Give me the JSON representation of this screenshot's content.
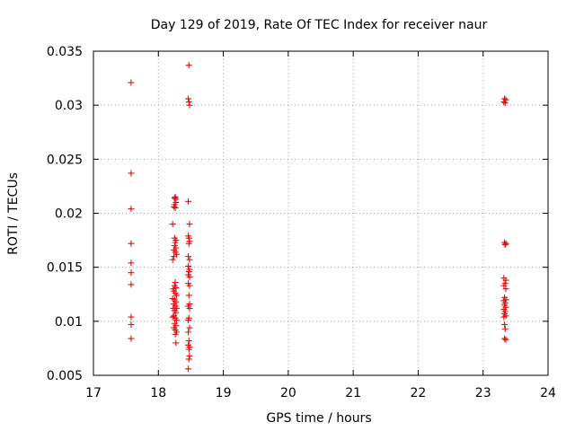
{
  "chart_data": {
    "type": "scatter",
    "title": "Day 129 of 2019, Rate Of TEC Index for receiver naur",
    "xlabel": "GPS time / hours",
    "ylabel": "ROTI / TECUs",
    "xlim": [
      17,
      24
    ],
    "ylim": [
      0.005,
      0.035
    ],
    "xticks": [
      17,
      18,
      19,
      20,
      21,
      22,
      23,
      24
    ],
    "yticks": [
      0.005,
      0.01,
      0.015,
      0.02,
      0.025,
      0.03,
      0.035
    ],
    "xtick_labels": [
      "17",
      "18",
      "19",
      "20",
      "21",
      "22",
      "23",
      "24"
    ],
    "ytick_labels": [
      "0.005",
      "0.01",
      "0.015",
      "0.02",
      "0.025",
      "0.03",
      "0.035"
    ],
    "grid": true,
    "marker": "+",
    "color": "#e01010",
    "series": [
      {
        "name": "ROTI",
        "points": [
          [
            17.58,
            0.0321
          ],
          [
            17.58,
            0.0237
          ],
          [
            17.58,
            0.0204
          ],
          [
            17.58,
            0.0172
          ],
          [
            17.58,
            0.0154
          ],
          [
            17.58,
            0.0145
          ],
          [
            17.58,
            0.0134
          ],
          [
            17.58,
            0.0104
          ],
          [
            17.58,
            0.0097
          ],
          [
            17.58,
            0.0084
          ],
          [
            18.22,
            0.019
          ],
          [
            18.22,
            0.0157
          ],
          [
            18.23,
            0.013
          ],
          [
            18.22,
            0.0121
          ],
          [
            18.23,
            0.0112
          ],
          [
            18.22,
            0.0104
          ],
          [
            18.25,
            0.0214
          ],
          [
            18.26,
            0.0215
          ],
          [
            18.27,
            0.0213
          ],
          [
            18.25,
            0.0208
          ],
          [
            18.24,
            0.0206
          ],
          [
            18.26,
            0.0205
          ],
          [
            18.27,
            0.021
          ],
          [
            18.25,
            0.0177
          ],
          [
            18.27,
            0.0175
          ],
          [
            18.26,
            0.0173
          ],
          [
            18.25,
            0.017
          ],
          [
            18.27,
            0.0168
          ],
          [
            18.24,
            0.0166
          ],
          [
            18.26,
            0.0164
          ],
          [
            18.28,
            0.0162
          ],
          [
            18.24,
            0.016
          ],
          [
            18.26,
            0.0136
          ],
          [
            18.25,
            0.0133
          ],
          [
            18.27,
            0.0131
          ],
          [
            18.24,
            0.0128
          ],
          [
            18.26,
            0.0126
          ],
          [
            18.28,
            0.0124
          ],
          [
            18.25,
            0.012
          ],
          [
            18.27,
            0.0118
          ],
          [
            18.24,
            0.0116
          ],
          [
            18.26,
            0.0114
          ],
          [
            18.28,
            0.0112
          ],
          [
            18.25,
            0.011
          ],
          [
            18.27,
            0.0108
          ],
          [
            18.24,
            0.0105
          ],
          [
            18.26,
            0.0103
          ],
          [
            18.28,
            0.0101
          ],
          [
            18.25,
            0.0098
          ],
          [
            18.27,
            0.0096
          ],
          [
            18.24,
            0.0094
          ],
          [
            18.26,
            0.0092
          ],
          [
            18.28,
            0.009
          ],
          [
            18.26,
            0.0088
          ],
          [
            18.27,
            0.008
          ],
          [
            18.47,
            0.0337
          ],
          [
            18.46,
            0.0306
          ],
          [
            18.47,
            0.0303
          ],
          [
            18.48,
            0.03
          ],
          [
            18.46,
            0.0211
          ],
          [
            18.48,
            0.019
          ],
          [
            18.46,
            0.0179
          ],
          [
            18.47,
            0.0177
          ],
          [
            18.48,
            0.0174
          ],
          [
            18.47,
            0.0172
          ],
          [
            18.46,
            0.016
          ],
          [
            18.48,
            0.0157
          ],
          [
            18.46,
            0.0151
          ],
          [
            18.48,
            0.0148
          ],
          [
            18.47,
            0.0146
          ],
          [
            18.46,
            0.0143
          ],
          [
            18.48,
            0.0141
          ],
          [
            18.46,
            0.0135
          ],
          [
            18.48,
            0.0133
          ],
          [
            18.47,
            0.0124
          ],
          [
            18.48,
            0.0116
          ],
          [
            18.46,
            0.0114
          ],
          [
            18.48,
            0.0112
          ],
          [
            18.47,
            0.0103
          ],
          [
            18.46,
            0.0101
          ],
          [
            18.48,
            0.0094
          ],
          [
            18.46,
            0.009
          ],
          [
            18.47,
            0.0082
          ],
          [
            18.46,
            0.0078
          ],
          [
            18.48,
            0.0076
          ],
          [
            18.47,
            0.0074
          ],
          [
            18.48,
            0.0068
          ],
          [
            18.47,
            0.0065
          ],
          [
            18.46,
            0.0056
          ],
          [
            23.33,
            0.0306
          ],
          [
            23.35,
            0.0305
          ],
          [
            23.32,
            0.0303
          ],
          [
            23.34,
            0.0302
          ],
          [
            23.33,
            0.0173
          ],
          [
            23.35,
            0.0172
          ],
          [
            23.34,
            0.0171
          ],
          [
            23.32,
            0.014
          ],
          [
            23.35,
            0.0138
          ],
          [
            23.34,
            0.0135
          ],
          [
            23.32,
            0.0133
          ],
          [
            23.35,
            0.013
          ],
          [
            23.33,
            0.0122
          ],
          [
            23.35,
            0.012
          ],
          [
            23.32,
            0.0119
          ],
          [
            23.34,
            0.0117
          ],
          [
            23.33,
            0.0115
          ],
          [
            23.35,
            0.0113
          ],
          [
            23.32,
            0.0111
          ],
          [
            23.34,
            0.0109
          ],
          [
            23.33,
            0.0107
          ],
          [
            23.35,
            0.0105
          ],
          [
            23.32,
            0.0104
          ],
          [
            23.33,
            0.0097
          ],
          [
            23.34,
            0.0093
          ],
          [
            23.33,
            0.0084
          ],
          [
            23.35,
            0.0083
          ]
        ]
      }
    ]
  }
}
